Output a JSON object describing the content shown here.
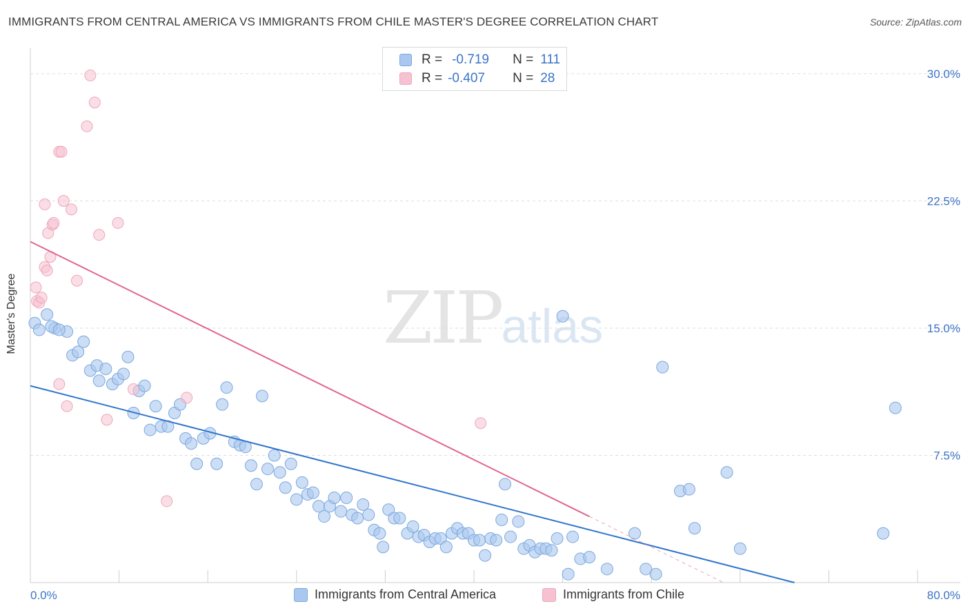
{
  "title": "IMMIGRANTS FROM CENTRAL AMERICA VS IMMIGRANTS FROM CHILE MASTER'S DEGREE CORRELATION CHART",
  "source": "Source: ZipAtlas.com",
  "watermark": {
    "zip": "ZIP",
    "atlas": "atlas"
  },
  "legend": {
    "rows": [
      {
        "r_label": "R =",
        "r_value": "-0.719",
        "n_label": "N =",
        "n_value": "111"
      },
      {
        "r_label": "R =",
        "r_value": "-0.407",
        "n_label": "N =",
        "n_value": "28"
      }
    ]
  },
  "bottom_legend": [
    "Immigrants from Central America",
    "Immigrants from Chile"
  ],
  "colors": {
    "blue_fill": "#aac8ef",
    "blue_stroke": "#7aa7de",
    "blue_line": "#2f74cc",
    "pink_fill": "#f6c2d1",
    "pink_stroke": "#eea5bb",
    "pink_line": "#e06490",
    "tick_text": "#3a73c7",
    "grid": "#dddddd"
  },
  "chart_data": {
    "type": "scatter",
    "title": "IMMIGRANTS FROM CENTRAL AMERICA VS IMMIGRANTS FROM CHILE MASTER'S DEGREE CORRELATION CHART",
    "xlabel": "",
    "ylabel": "Master's Degree",
    "xlim": [
      0,
      80
    ],
    "ylim": [
      0,
      31.5
    ],
    "x_tick_labels": [
      "0.0%",
      "80.0%"
    ],
    "y_ticks": [
      7.5,
      15.0,
      22.5,
      30.0
    ],
    "y_tick_labels": [
      "7.5%",
      "15.0%",
      "22.5%",
      "30.0%"
    ],
    "grid": "horizontal dashed",
    "legend_position": "top-center",
    "series": [
      {
        "name": "Immigrants from Central America",
        "R": -0.719,
        "N": 111,
        "trend": {
          "x": [
            0,
            68.9
          ],
          "y": [
            11.6,
            0
          ]
        },
        "points": [
          [
            0.4,
            15.3
          ],
          [
            1.5,
            15.8
          ],
          [
            2.2,
            15.0
          ],
          [
            3.3,
            14.8
          ],
          [
            3.8,
            13.4
          ],
          [
            4.3,
            13.6
          ],
          [
            4.8,
            14.2
          ],
          [
            5.4,
            12.5
          ],
          [
            6.0,
            12.8
          ],
          [
            6.2,
            11.9
          ],
          [
            6.8,
            12.6
          ],
          [
            7.4,
            11.7
          ],
          [
            7.9,
            12.0
          ],
          [
            8.4,
            12.3
          ],
          [
            8.8,
            13.3
          ],
          [
            9.3,
            10.0
          ],
          [
            9.8,
            11.3
          ],
          [
            10.3,
            11.6
          ],
          [
            10.8,
            9.0
          ],
          [
            11.3,
            10.4
          ],
          [
            11.8,
            9.2
          ],
          [
            12.4,
            9.2
          ],
          [
            13.0,
            10.0
          ],
          [
            13.5,
            10.5
          ],
          [
            14.0,
            8.5
          ],
          [
            14.5,
            8.2
          ],
          [
            15.0,
            7.0
          ],
          [
            15.6,
            8.5
          ],
          [
            16.2,
            8.8
          ],
          [
            16.8,
            7.0
          ],
          [
            17.3,
            10.5
          ],
          [
            17.7,
            11.5
          ],
          [
            18.4,
            8.3
          ],
          [
            18.9,
            8.1
          ],
          [
            19.4,
            8.0
          ],
          [
            19.9,
            6.9
          ],
          [
            20.4,
            5.8
          ],
          [
            20.9,
            11.0
          ],
          [
            21.4,
            6.7
          ],
          [
            22.0,
            7.5
          ],
          [
            22.5,
            6.5
          ],
          [
            23.0,
            5.6
          ],
          [
            23.5,
            7.0
          ],
          [
            24.0,
            4.9
          ],
          [
            24.5,
            5.9
          ],
          [
            25.0,
            5.2
          ],
          [
            25.5,
            5.3
          ],
          [
            26.0,
            4.5
          ],
          [
            26.5,
            3.9
          ],
          [
            27.0,
            4.5
          ],
          [
            27.4,
            5.0
          ],
          [
            28.0,
            4.2
          ],
          [
            28.5,
            5.0
          ],
          [
            29.0,
            4.0
          ],
          [
            29.5,
            3.8
          ],
          [
            30.0,
            4.6
          ],
          [
            30.5,
            4.0
          ],
          [
            31.0,
            3.1
          ],
          [
            31.5,
            2.9
          ],
          [
            31.8,
            2.1
          ],
          [
            32.3,
            4.3
          ],
          [
            32.8,
            3.8
          ],
          [
            33.3,
            3.8
          ],
          [
            34.0,
            2.9
          ],
          [
            34.5,
            3.3
          ],
          [
            35.0,
            2.7
          ],
          [
            35.5,
            2.8
          ],
          [
            36.0,
            2.4
          ],
          [
            36.5,
            2.6
          ],
          [
            37.0,
            2.6
          ],
          [
            37.5,
            2.1
          ],
          [
            38.0,
            2.9
          ],
          [
            38.5,
            3.2
          ],
          [
            39.0,
            2.9
          ],
          [
            39.5,
            2.9
          ],
          [
            40.0,
            2.5
          ],
          [
            40.5,
            2.5
          ],
          [
            41.0,
            1.6
          ],
          [
            41.5,
            2.6
          ],
          [
            42.0,
            2.5
          ],
          [
            42.5,
            3.7
          ],
          [
            42.8,
            5.8
          ],
          [
            43.3,
            2.7
          ],
          [
            44.0,
            3.6
          ],
          [
            44.5,
            2.0
          ],
          [
            45.0,
            2.2
          ],
          [
            45.5,
            1.8
          ],
          [
            46.0,
            2.0
          ],
          [
            46.5,
            2.0
          ],
          [
            47.0,
            1.9
          ],
          [
            47.5,
            2.6
          ],
          [
            48.0,
            15.7
          ],
          [
            48.5,
            0.5
          ],
          [
            48.9,
            2.7
          ],
          [
            49.6,
            1.4
          ],
          [
            50.4,
            1.5
          ],
          [
            52.0,
            0.8
          ],
          [
            54.5,
            2.9
          ],
          [
            55.5,
            0.8
          ],
          [
            56.4,
            0.5
          ],
          [
            57.0,
            12.7
          ],
          [
            58.6,
            5.4
          ],
          [
            59.4,
            5.5
          ],
          [
            59.9,
            3.2
          ],
          [
            62.8,
            6.5
          ],
          [
            64.0,
            2.0
          ],
          [
            76.9,
            2.9
          ],
          [
            78.0,
            10.3
          ],
          [
            0.8,
            14.9
          ],
          [
            1.9,
            15.1
          ],
          [
            2.6,
            14.9
          ]
        ]
      },
      {
        "name": "Immigrants from Chile",
        "R": -0.407,
        "N": 28,
        "trend": {
          "x": [
            0,
            50.4
          ],
          "y": [
            20.1,
            3.9
          ]
        },
        "trend_dashed": {
          "x": [
            50.4,
            62.5
          ],
          "y": [
            3.9,
            0
          ]
        },
        "points": [
          [
            0.6,
            16.6
          ],
          [
            0.5,
            17.4
          ],
          [
            0.8,
            16.5
          ],
          [
            1.0,
            16.8
          ],
          [
            1.3,
            18.6
          ],
          [
            1.3,
            22.3
          ],
          [
            1.5,
            18.4
          ],
          [
            1.6,
            20.6
          ],
          [
            1.8,
            19.2
          ],
          [
            2.0,
            21.1
          ],
          [
            2.1,
            21.2
          ],
          [
            2.6,
            11.7
          ],
          [
            2.6,
            25.4
          ],
          [
            2.8,
            25.4
          ],
          [
            3.0,
            22.5
          ],
          [
            3.3,
            10.4
          ],
          [
            3.7,
            22.0
          ],
          [
            4.2,
            17.8
          ],
          [
            5.1,
            26.9
          ],
          [
            5.4,
            29.9
          ],
          [
            5.8,
            28.3
          ],
          [
            6.2,
            20.5
          ],
          [
            6.9,
            9.6
          ],
          [
            7.9,
            21.2
          ],
          [
            9.3,
            11.4
          ],
          [
            12.3,
            4.8
          ],
          [
            14.1,
            10.9
          ],
          [
            40.6,
            9.4
          ]
        ]
      }
    ]
  }
}
